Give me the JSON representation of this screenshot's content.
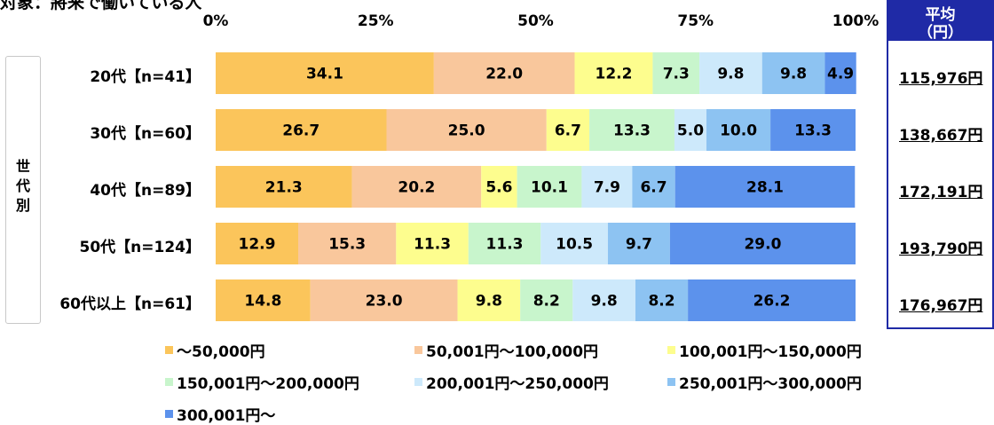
{
  "subtitle": "対象：將来で働いている人",
  "section_label": "世代別",
  "avg_header": {
    "line1": "平均",
    "line2": "（円）"
  },
  "colors": [
    "#fbc55b",
    "#f9c79c",
    "#fdfd8e",
    "#c8f5cc",
    "#cde9fb",
    "#8dc3f2",
    "#5c92ec"
  ],
  "chart_data": {
    "type": "bar",
    "orientation": "horizontal",
    "stacked": true,
    "xlim": [
      0,
      100
    ],
    "x_ticks": [
      "0%",
      "25%",
      "50%",
      "75%",
      "100%"
    ],
    "categories": [
      "20代【n=41】",
      "30代【n=60】",
      "40代【n=89】",
      "50代【n=124】",
      "60代以上【n=61】"
    ],
    "series": [
      {
        "name": "～50,000円",
        "values": [
          34.1,
          26.7,
          21.3,
          12.9,
          14.8
        ]
      },
      {
        "name": "50,001円～100,000円",
        "values": [
          22.0,
          25.0,
          20.2,
          15.3,
          23.0
        ]
      },
      {
        "name": "100,001円～150,000円",
        "values": [
          12.2,
          6.7,
          5.6,
          11.3,
          9.8
        ]
      },
      {
        "name": "150,001円～200,000円",
        "values": [
          7.3,
          13.3,
          10.1,
          11.3,
          8.2
        ]
      },
      {
        "name": "200,001円～250,000円",
        "values": [
          9.8,
          5.0,
          7.9,
          10.5,
          9.8
        ]
      },
      {
        "name": "250,001円～300,000円",
        "values": [
          9.8,
          10.0,
          6.7,
          9.7,
          8.2
        ]
      },
      {
        "name": "300,001円～",
        "values": [
          4.9,
          13.3,
          28.1,
          29.0,
          26.2
        ]
      }
    ],
    "averages": [
      "115,976円",
      "138,667円",
      "172,191円",
      "193,790円",
      "176,967円"
    ],
    "legend_position": "bottom"
  }
}
